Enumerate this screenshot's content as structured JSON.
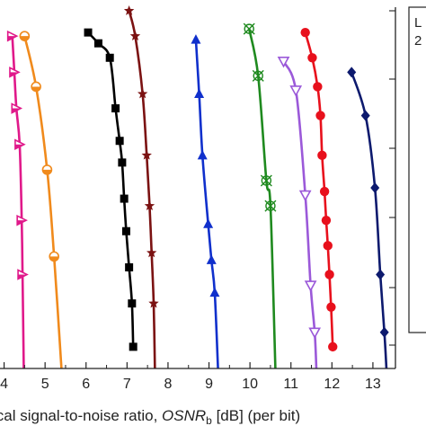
{
  "chart_data": {
    "type": "line",
    "xlabel": "ical signal-to-noise ratio, OSNR_b [dB] (per bit)",
    "xlabel_parts": {
      "prefix": "ical signal-to-noise ratio, ",
      "symbol": "OSNR",
      "subscript": "b",
      "suffix": " [dB] (per bit)"
    },
    "xlim": [
      3.9,
      13.55
    ],
    "x_ticks": [
      4,
      5,
      6,
      7,
      8,
      9,
      10,
      11,
      12,
      13
    ],
    "x_tick_labels": [
      "4",
      "5",
      "6",
      "7",
      "8",
      "9",
      "10",
      "11",
      "12",
      "13"
    ],
    "ylim": [
      0,
      1
    ],
    "y_scale": "log (BER), decreasing downward",
    "legend": {
      "placement": "right",
      "partial_text": [
        "L",
        "2"
      ]
    },
    "series": [
      {
        "marker": "triangle-right",
        "color": "#e0198a",
        "points": [
          [
            4.2,
            0.92
          ],
          [
            4.25,
            0.82
          ],
          [
            4.3,
            0.72
          ],
          [
            4.38,
            0.62
          ],
          [
            4.43,
            0.41
          ],
          [
            4.45,
            0.26
          ],
          [
            4.48,
            0.0
          ]
        ]
      },
      {
        "marker": "half-circle",
        "color": "#f08a1c",
        "points": [
          [
            4.5,
            0.92
          ],
          [
            4.78,
            0.78
          ],
          [
            5.05,
            0.55
          ],
          [
            5.22,
            0.31
          ],
          [
            5.4,
            0.0
          ]
        ]
      },
      {
        "marker": "square",
        "color": "#000000",
        "points": [
          [
            6.05,
            0.93
          ],
          [
            6.3,
            0.9
          ],
          [
            6.58,
            0.86
          ],
          [
            6.72,
            0.72
          ],
          [
            6.82,
            0.63
          ],
          [
            6.88,
            0.57
          ],
          [
            6.93,
            0.47
          ],
          [
            6.98,
            0.38
          ],
          [
            7.05,
            0.28
          ],
          [
            7.12,
            0.18
          ],
          [
            7.15,
            0.06
          ]
        ]
      },
      {
        "marker": "star",
        "color": "#7b1212",
        "points": [
          [
            7.05,
            0.99
          ],
          [
            7.2,
            0.92
          ],
          [
            7.38,
            0.76
          ],
          [
            7.48,
            0.59
          ],
          [
            7.55,
            0.45
          ],
          [
            7.6,
            0.32
          ],
          [
            7.65,
            0.18
          ],
          [
            7.68,
            0.0
          ]
        ]
      },
      {
        "marker": "triangle-up",
        "color": "#1030cc",
        "points": [
          [
            8.68,
            0.91
          ],
          [
            8.76,
            0.76
          ],
          [
            8.84,
            0.59
          ],
          [
            8.98,
            0.4
          ],
          [
            9.06,
            0.3
          ],
          [
            9.14,
            0.21
          ],
          [
            9.22,
            0.0
          ]
        ]
      },
      {
        "marker": "circle-x",
        "color": "#1f8a1f",
        "points": [
          [
            9.98,
            0.94
          ],
          [
            10.2,
            0.81
          ],
          [
            10.4,
            0.52
          ],
          [
            10.5,
            0.45
          ],
          [
            10.62,
            0.0
          ]
        ]
      },
      {
        "marker": "triangle-down",
        "color": "#9b59d9",
        "points": [
          [
            10.82,
            0.85
          ],
          [
            11.12,
            0.77
          ],
          [
            11.35,
            0.48
          ],
          [
            11.48,
            0.23
          ],
          [
            11.58,
            0.1
          ],
          [
            11.62,
            0.0
          ]
        ]
      },
      {
        "marker": "circle",
        "color": "#e8101c",
        "points": [
          [
            11.35,
            0.93
          ],
          [
            11.52,
            0.86
          ],
          [
            11.65,
            0.78
          ],
          [
            11.72,
            0.7
          ],
          [
            11.76,
            0.59
          ],
          [
            11.82,
            0.49
          ],
          [
            11.86,
            0.41
          ],
          [
            11.9,
            0.34
          ],
          [
            11.94,
            0.26
          ],
          [
            11.98,
            0.17
          ],
          [
            12.02,
            0.06
          ]
        ]
      },
      {
        "marker": "diamond",
        "color": "#0d1a6e",
        "points": [
          [
            12.48,
            0.82
          ],
          [
            12.82,
            0.7
          ],
          [
            13.05,
            0.5
          ],
          [
            13.18,
            0.26
          ],
          [
            13.28,
            0.1
          ],
          [
            13.33,
            0.0
          ]
        ]
      }
    ]
  }
}
